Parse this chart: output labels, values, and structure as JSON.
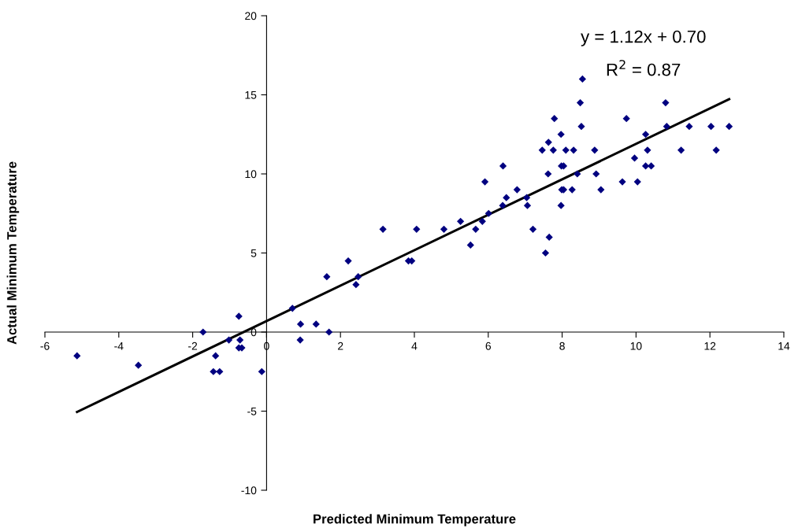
{
  "chart_data": {
    "type": "scatter",
    "xlabel": "Predicted Minimum Temperature",
    "ylabel": "Actual Minimum Temperature",
    "annotations": [
      "y = 1.12x + 0.70",
      "R$^{2}$ = 0.87"
    ],
    "xlim": [
      -6,
      14
    ],
    "ylim": [
      -10,
      20
    ],
    "xticks": [
      -6,
      -4,
      -2,
      0,
      2,
      4,
      6,
      8,
      10,
      12,
      14
    ],
    "yticks": [
      -10,
      -5,
      0,
      5,
      10,
      15,
      20
    ],
    "grid": false,
    "legend": false,
    "marker": "diamond",
    "series": [
      {
        "color": "#000080",
        "x": [
          -5.13,
          -3.47,
          -1.72,
          -1.38,
          -1.44,
          -1.27,
          -1.02,
          -0.75,
          -0.72,
          -0.75,
          -0.67,
          -0.13,
          0.7,
          0.92,
          0.91,
          1.34,
          1.69,
          1.63,
          2.21,
          2.42,
          2.48,
          3.15,
          3.84,
          3.93,
          4.06,
          4.8,
          5.25,
          5.52,
          5.66,
          5.84,
          6.01,
          5.91,
          6.39,
          6.49,
          6.78,
          7.04,
          7.06,
          7.21,
          6.4,
          7.46,
          7.63,
          7.79,
          7.76,
          7.62,
          7.55,
          7.65,
          7.97,
          7.98,
          8.04,
          7.99,
          8.04,
          7.97,
          8.1,
          8.31,
          8.27,
          8.41,
          8.49,
          8.52,
          8.55,
          8.88,
          8.92,
          9.05,
          9.63,
          9.74,
          9.96,
          10.04,
          10.26,
          10.31,
          10.26,
          10.41,
          10.8,
          10.83,
          11.22,
          11.44,
          12.03,
          12.17,
          12.52
        ],
        "values": [
          -1.5,
          -2.1,
          0,
          -1.5,
          -2.5,
          -2.5,
          -0.5,
          1.0,
          -0.5,
          -1.0,
          -1.0,
          -2.5,
          1.5,
          0.5,
          -0.5,
          0.5,
          0,
          3.5,
          4.5,
          3.0,
          3.5,
          6.5,
          4.5,
          4.5,
          6.5,
          6.5,
          7.0,
          5.5,
          6.5,
          7.0,
          7.5,
          9.5,
          8.0,
          8.5,
          9.0,
          8.5,
          8.0,
          6.5,
          10.5,
          11.5,
          12.0,
          13.5,
          11.5,
          10.0,
          5.0,
          6.0,
          12.5,
          10.5,
          10.5,
          9.0,
          9.0,
          8.0,
          11.5,
          11.5,
          9.0,
          10.0,
          14.5,
          13.0,
          16.0,
          11.5,
          10.0,
          9.0,
          9.5,
          13.5,
          11.0,
          9.5,
          12.5,
          11.5,
          10.5,
          10.5,
          14.5,
          13.0,
          11.5,
          13.0,
          13.0,
          11.5,
          13.0
        ]
      },
      {
        "type": "line",
        "color": "#000000",
        "marker": "none",
        "line_style": "solid",
        "x": [
          -5.13,
          12.52
        ],
        "values": [
          -5.05,
          14.72
        ]
      }
    ]
  }
}
